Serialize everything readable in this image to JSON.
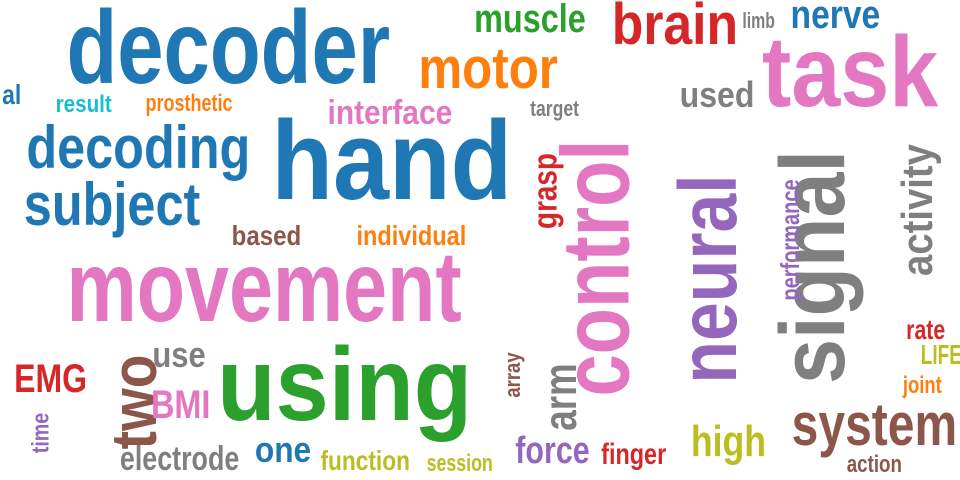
{
  "palette": {
    "blue": "#1f77b4",
    "orange": "#ff7f0e",
    "green": "#2ca02c",
    "red": "#d62728",
    "purple": "#9467bd",
    "brown": "#8c564b",
    "pink": "#e377c2",
    "gray": "#7f7f7f",
    "olive": "#bcbd22",
    "cyan": "#17becf"
  },
  "words": {
    "decoder": "decoder",
    "hand": "hand",
    "movement": "movement",
    "control": "control",
    "signal": "signal",
    "task": "task",
    "using": "using",
    "neural": "neural",
    "brain": "brain",
    "motor": "motor",
    "decoding": "decoding",
    "subject": "subject",
    "system": "system",
    "muscle": "muscle",
    "nerve": "nerve",
    "two": "two",
    "activity": "activity",
    "interface": "interface",
    "used": "used",
    "result": "result",
    "prosthetic": "prosthetic",
    "al": "al",
    "target": "target",
    "limb": "limb",
    "grasp": "grasp",
    "based": "based",
    "individual": "individual",
    "performance": "performance",
    "EMG": "EMG",
    "BMI": "BMI",
    "use": "use",
    "arm": "arm",
    "array": "array",
    "time": "time",
    "electrode": "electrode",
    "one": "one",
    "function": "function",
    "session": "session",
    "force": "force",
    "finger": "finger",
    "high": "high",
    "rate": "rate",
    "LIFE": "LIFE",
    "joint": "joint",
    "action": "action"
  }
}
